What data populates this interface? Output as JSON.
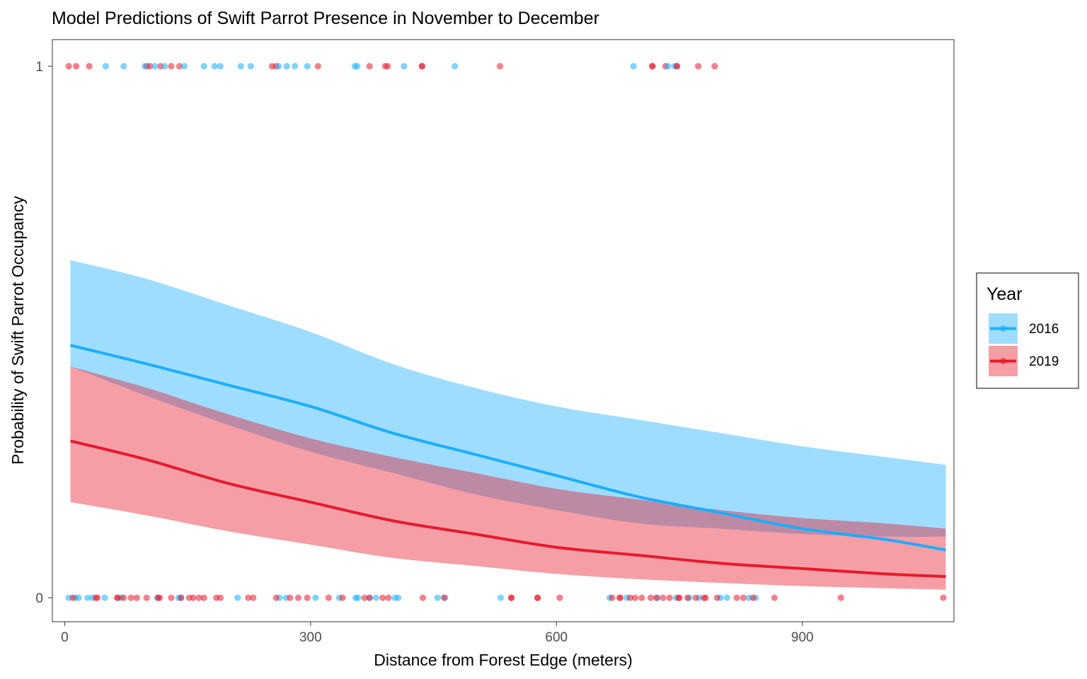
{
  "chart_data": {
    "type": "line",
    "title": "Model Predictions of Swift Parrot Presence in November to December",
    "xlabel": "Distance from Forest Edge (meters)",
    "ylabel": "Probability of Swift Parrot Occupancy",
    "xlim": [
      -15,
      1085
    ],
    "ylim": [
      -0.045,
      1.05
    ],
    "x_ticks": [
      0,
      300,
      600,
      900
    ],
    "x_tick_labels": [
      "0",
      "300",
      "600",
      "900"
    ],
    "y_ticks": [
      0,
      1
    ],
    "y_tick_labels": [
      "0",
      "1"
    ],
    "grid": false,
    "legend": {
      "title": "Year",
      "position": "right",
      "entries": [
        "2016",
        "2019"
      ]
    },
    "series": [
      {
        "name": "2016",
        "color": "#1AAEFF",
        "ribbon_color": "#A1E0FC",
        "x": [
          7,
          100,
          200,
          300,
          400,
          500,
          600,
          700,
          800,
          900,
          1000,
          1075
        ],
        "fit": [
          0.475,
          0.44,
          0.4,
          0.36,
          0.31,
          0.27,
          0.23,
          0.19,
          0.16,
          0.13,
          0.11,
          0.09
        ],
        "lower": [
          0.435,
          0.38,
          0.325,
          0.275,
          0.235,
          0.195,
          0.165,
          0.14,
          0.13,
          0.12,
          0.115,
          0.115
        ],
        "upper": [
          0.635,
          0.6,
          0.55,
          0.5,
          0.44,
          0.395,
          0.36,
          0.335,
          0.31,
          0.285,
          0.265,
          0.25
        ]
      },
      {
        "name": "2019",
        "color": "#E8192C",
        "ribbon_color": "#F5A0A6",
        "x": [
          7,
          100,
          200,
          300,
          400,
          500,
          600,
          700,
          800,
          900,
          1000,
          1075
        ],
        "fit": [
          0.295,
          0.26,
          0.215,
          0.18,
          0.145,
          0.12,
          0.095,
          0.08,
          0.065,
          0.055,
          0.045,
          0.04
        ],
        "lower": [
          0.18,
          0.155,
          0.125,
          0.1,
          0.075,
          0.06,
          0.045,
          0.035,
          0.028,
          0.022,
          0.018,
          0.015
        ],
        "upper": [
          0.435,
          0.395,
          0.345,
          0.3,
          0.265,
          0.235,
          0.205,
          0.185,
          0.165,
          0.15,
          0.14,
          0.13
        ]
      }
    ],
    "observations": [
      {
        "year": "2019",
        "presence": 1,
        "x": [
          5,
          14,
          30,
          100,
          104,
          117,
          130,
          140,
          253,
          258,
          309,
          372,
          394,
          436,
          531,
          717,
          733,
          747,
          773,
          793
        ]
      },
      {
        "year": "2016",
        "presence": 1,
        "x": [
          50,
          72,
          98,
          110,
          122,
          146,
          170,
          183,
          190,
          215,
          227,
          261,
          271,
          281,
          296,
          354,
          357,
          414,
          476,
          694,
          736,
          744
        ]
      },
      {
        "year": "2019",
        "presence": 1,
        "x": [
          391,
          436,
          717,
          747
        ]
      },
      {
        "year": "2016",
        "presence": 0,
        "x": [
          5,
          13,
          17,
          28,
          34,
          49,
          69,
          113,
          139,
          142,
          211,
          262,
          270,
          306,
          335,
          355,
          358,
          372,
          380,
          403,
          407,
          455,
          464,
          532,
          665,
          686,
          723,
          746,
          762,
          774,
          800,
          808,
          835,
          843
        ]
      },
      {
        "year": "2019",
        "presence": 0,
        "x": [
          10,
          38,
          40,
          65,
          72,
          81,
          88,
          100,
          114,
          130,
          142,
          152,
          157,
          170,
          185,
          190,
          224,
          230,
          258,
          275,
          285,
          296,
          339,
          372,
          388,
          395,
          437,
          463,
          545,
          577,
          604,
          677,
          690,
          696,
          704,
          715,
          722,
          730,
          738,
          750,
          760,
          770,
          782,
          796,
          820,
          840,
          947,
          1072
        ]
      },
      {
        "year": "2019",
        "presence": 0,
        "x": [
          64,
          116,
          164,
          322,
          366,
          545,
          577,
          668,
          678,
          749,
          780,
          828,
          866
        ]
      }
    ]
  }
}
